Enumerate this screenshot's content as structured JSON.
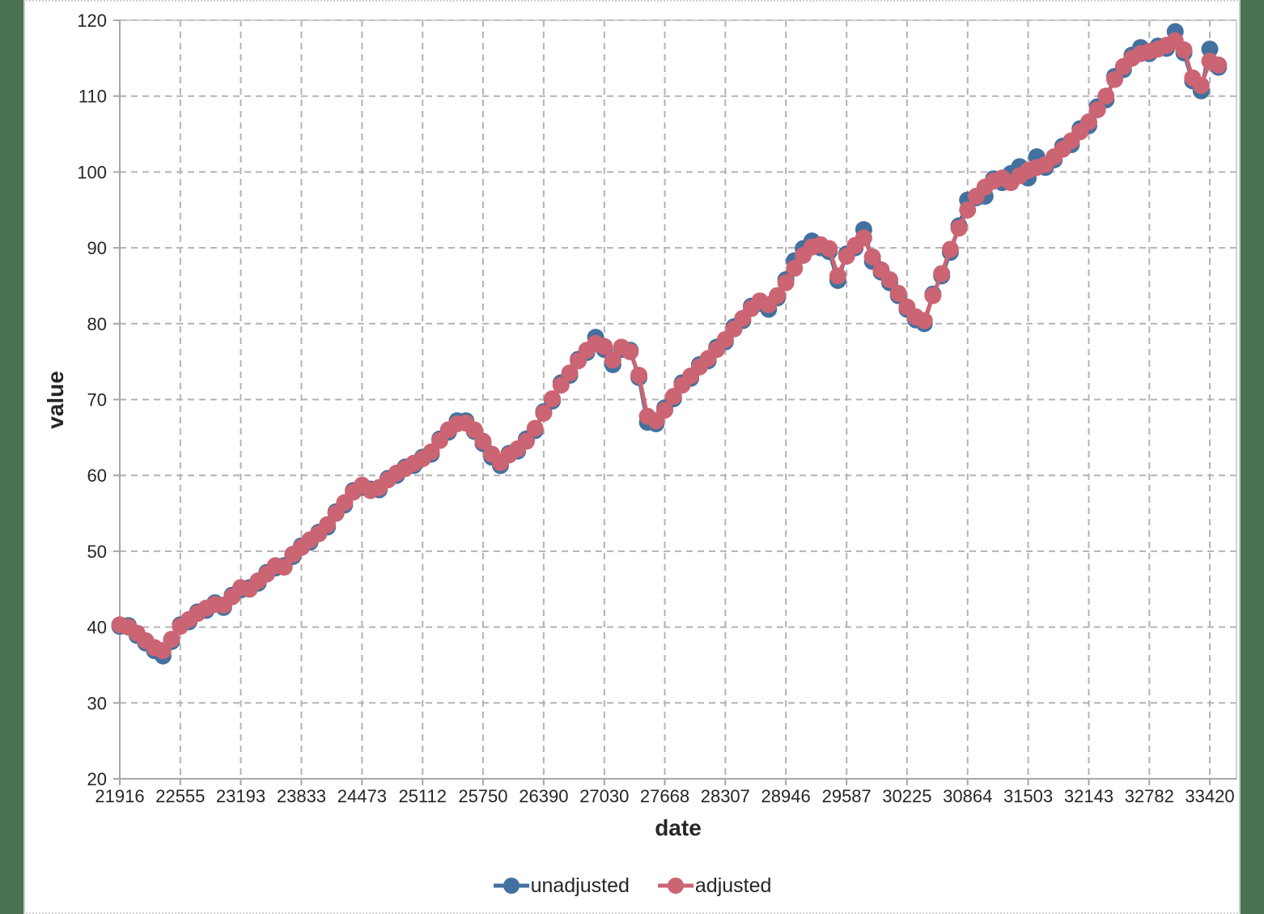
{
  "frame": {
    "background_color": "#4a7150",
    "panel_color": "#ffffff"
  },
  "chart_data": {
    "type": "line",
    "title": "",
    "xlabel": "date",
    "ylabel": "value",
    "legend_position": "bottom",
    "grid": "both-dashed",
    "ylim": [
      20,
      120
    ],
    "y_ticks": [
      20,
      30,
      40,
      50,
      60,
      70,
      80,
      90,
      100,
      110,
      120
    ],
    "y_tick_labels": [
      "20",
      "30",
      "40",
      "50",
      "60",
      "70",
      "80",
      "90",
      "100",
      "110",
      "120"
    ],
    "x_ticks": [
      21916,
      22555,
      23193,
      23833,
      24473,
      25112,
      25750,
      26390,
      27030,
      27668,
      28307,
      28946,
      29587,
      30225,
      30864,
      31503,
      32143,
      32782,
      33420
    ],
    "x_tick_labels": [
      "21916",
      "22555",
      "23193",
      "23833",
      "24473",
      "25112",
      "25750",
      "26390",
      "27030",
      "27668",
      "28307",
      "28946",
      "29587",
      "30225",
      "30864",
      "31503",
      "32143",
      "32782",
      "33420"
    ],
    "x": [
      21916,
      22007,
      22098,
      22190,
      22282,
      22372,
      22463,
      22555,
      22647,
      22737,
      22828,
      22920,
      23012,
      23102,
      23193,
      23285,
      23377,
      23468,
      23559,
      23651,
      23743,
      23833,
      23924,
      24016,
      24108,
      24198,
      24289,
      24381,
      24473,
      24563,
      24654,
      24746,
      24838,
      24929,
      25020,
      25112,
      25204,
      25294,
      25385,
      25477,
      25569,
      25659,
      25750,
      25842,
      25934,
      26024,
      26115,
      26207,
      26299,
      26390,
      26481,
      26573,
      26665,
      26755,
      26846,
      26938,
      27030,
      27120,
      27211,
      27303,
      27395,
      27485,
      27576,
      27668,
      27760,
      27851,
      27942,
      28034,
      28126,
      28216,
      28307,
      28399,
      28491,
      28581,
      28672,
      28764,
      28856,
      28946,
      29037,
      29129,
      29221,
      29312,
      29403,
      29495,
      29587,
      29677,
      29768,
      29860,
      29952,
      30042,
      30133,
      30225,
      30317,
      30407,
      30498,
      30590,
      30682,
      30773,
      30864,
      30956,
      31048,
      31138,
      31229,
      31321,
      31413,
      31503,
      31594,
      31686,
      31778,
      31868,
      31959,
      32051,
      32143,
      32234,
      32325,
      32417,
      32509,
      32599,
      32690,
      32782,
      32874,
      32964,
      33055,
      33147,
      33239,
      33329,
      33420,
      33512
    ],
    "series": [
      {
        "name": "unadjusted",
        "color": "#43719f",
        "values": [
          40.1,
          40.2,
          38.9,
          37.9,
          36.9,
          36.2,
          38.1,
          40.3,
          40.7,
          42.0,
          42.2,
          43.2,
          42.6,
          44.2,
          44.9,
          45.2,
          45.8,
          47.2,
          47.8,
          48.1,
          49.3,
          50.7,
          51.2,
          52.5,
          53.2,
          55.2,
          56.1,
          58.0,
          58.4,
          58.2,
          58.1,
          59.6,
          60.0,
          61.1,
          61.3,
          62.4,
          62.8,
          64.8,
          65.7,
          67.2,
          67.2,
          65.8,
          64.2,
          62.4,
          61.3,
          62.9,
          63.2,
          64.8,
          65.9,
          68.4,
          69.8,
          72.2,
          73.2,
          75.3,
          76.2,
          78.2,
          76.6,
          74.6,
          76.6,
          76.5,
          72.9,
          67.0,
          66.8,
          68.9,
          70.1,
          72.2,
          72.8,
          74.6,
          75.1,
          76.9,
          77.6,
          79.6,
          80.4,
          82.3,
          82.7,
          81.9,
          83.4,
          85.8,
          88.3,
          89.9,
          90.9,
          90.0,
          89.5,
          85.7,
          89.2,
          90.0,
          92.4,
          88.2,
          86.8,
          85.4,
          83.7,
          81.9,
          80.5,
          80.0,
          83.9,
          86.3,
          89.4,
          92.9,
          96.3,
          96.6,
          96.8,
          99.1,
          98.6,
          99.8,
          100.7,
          99.2,
          102.0,
          100.6,
          101.6,
          103.4,
          103.6,
          105.7,
          106.1,
          108.6,
          109.5,
          112.6,
          113.5,
          115.4,
          116.4,
          115.6,
          116.6,
          116.3,
          118.5,
          115.7,
          112.0,
          110.7,
          116.2,
          113.8
        ]
      },
      {
        "name": "adjusted",
        "color": "#cb6473",
        "values": [
          40.3,
          40.0,
          39.2,
          38.2,
          37.3,
          36.9,
          38.4,
          40.1,
          41.0,
          41.8,
          42.5,
          43.0,
          42.9,
          44.0,
          45.2,
          45.0,
          46.1,
          47.0,
          48.1,
          47.9,
          49.6,
          50.5,
          51.5,
          52.3,
          53.5,
          55.0,
          56.4,
          57.8,
          58.7,
          58.0,
          58.4,
          59.4,
          60.3,
          60.9,
          61.6,
          62.2,
          63.1,
          64.6,
          66.0,
          66.8,
          66.9,
          66.0,
          64.5,
          62.8,
          61.7,
          62.7,
          63.5,
          64.5,
          66.2,
          68.2,
          70.1,
          71.9,
          73.5,
          75.1,
          76.5,
          77.4,
          77.0,
          75.2,
          76.9,
          76.3,
          73.2,
          67.8,
          67.2,
          68.6,
          70.4,
          71.9,
          73.1,
          74.3,
          75.4,
          76.6,
          77.9,
          79.3,
          80.7,
          82.0,
          83.0,
          82.5,
          83.7,
          85.4,
          87.3,
          89.0,
          90.1,
          90.4,
          89.9,
          86.3,
          88.9,
          90.3,
          91.3,
          88.8,
          87.1,
          85.8,
          84.0,
          82.2,
          80.9,
          80.4,
          83.7,
          86.6,
          89.8,
          92.6,
          95.0,
          96.8,
          98.0,
          98.8,
          99.2,
          98.6,
          99.5,
          100.2,
          100.6,
          101.0,
          102.0,
          103.0,
          104.1,
          105.3,
          106.6,
          108.2,
          110.0,
          112.2,
          113.9,
          115.0,
          115.6,
          115.9,
          116.2,
          116.7,
          117.3,
          116.1,
          112.4,
          111.4,
          114.6,
          114.1
        ]
      }
    ]
  }
}
